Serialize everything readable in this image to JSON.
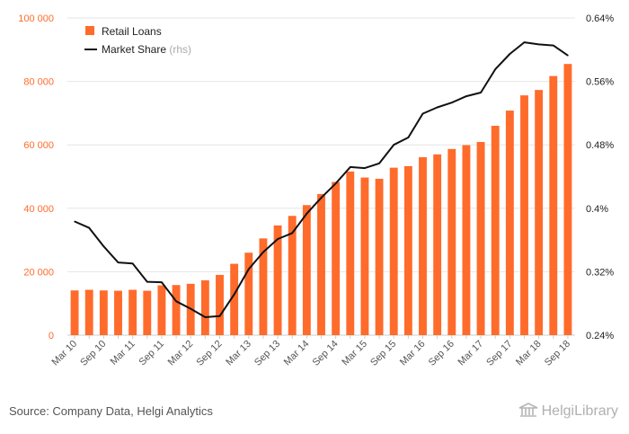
{
  "chart_data": {
    "type": "bar+line",
    "categories": [
      "Mar 10",
      "Jun 10",
      "Sep 10",
      "Dec 10",
      "Mar 11",
      "Jun 11",
      "Sep 11",
      "Dec 11",
      "Mar 12",
      "Jun 12",
      "Sep 12",
      "Dec 12",
      "Mar 13",
      "Jun 13",
      "Sep 13",
      "Dec 13",
      "Mar 14",
      "Jun 14",
      "Sep 14",
      "Dec 14",
      "Mar 15",
      "Jun 15",
      "Sep 15",
      "Dec 15",
      "Mar 16",
      "Jun 16",
      "Sep 16",
      "Dec 16",
      "Mar 17",
      "Jun 17",
      "Sep 17",
      "Dec 17",
      "Mar 18",
      "Jun 18",
      "Sep 18"
    ],
    "x_tick_labels": [
      "Mar 10",
      "Sep 10",
      "Mar 11",
      "Sep 11",
      "Mar 12",
      "Sep 12",
      "Mar 13",
      "Sep 13",
      "Mar 14",
      "Sep 14",
      "Mar 15",
      "Sep 15",
      "Mar 16",
      "Sep 16",
      "Mar 17",
      "Sep 17",
      "Mar 18",
      "Sep 18"
    ],
    "series": [
      {
        "name": "Retail Loans",
        "axis": "left",
        "color": "#ff6b2b",
        "values": [
          14100,
          14300,
          14100,
          14000,
          14300,
          14000,
          15700,
          15800,
          16200,
          17300,
          19000,
          22500,
          26000,
          30500,
          34600,
          37600,
          41000,
          44500,
          48300,
          51600,
          49700,
          49300,
          52800,
          53300,
          56100,
          57000,
          58700,
          59900,
          60900,
          66000,
          70800,
          75600,
          77300,
          81700,
          85500
        ]
      },
      {
        "name": "Market Share",
        "name_suffix": "(rhs)",
        "axis": "right",
        "color": "#111111",
        "values": [
          0.3833,
          0.3753,
          0.352,
          0.3317,
          0.3303,
          0.3073,
          0.3067,
          0.2827,
          0.2733,
          0.2627,
          0.264,
          0.2913,
          0.3233,
          0.3447,
          0.3613,
          0.3687,
          0.3933,
          0.4133,
          0.4313,
          0.452,
          0.4507,
          0.4567,
          0.48,
          0.4893,
          0.5193,
          0.5273,
          0.5333,
          0.5413,
          0.546,
          0.5753,
          0.5947,
          0.6093,
          0.6067,
          0.6053,
          0.5927
        ]
      }
    ],
    "left_axis": {
      "min": 0,
      "max": 100000,
      "tick_labels": [
        "0",
        "20 000",
        "40 000",
        "60 000",
        "80 000",
        "100 000"
      ]
    },
    "right_axis": {
      "min": 0.24,
      "max": 0.64,
      "tick_labels": [
        "0.24%",
        "0.32%",
        "0.4%",
        "0.48%",
        "0.56%",
        "0.64%"
      ]
    },
    "grid": true,
    "legend_position": "top-left"
  },
  "colors": {
    "left_axis_text": "#ff6b2b",
    "right_axis_text": "#222222",
    "grid": "#e6e6e6"
  },
  "footer": {
    "source": "Source: Company Data, Helgi Analytics",
    "logo_text": "HelgiLibrary"
  }
}
